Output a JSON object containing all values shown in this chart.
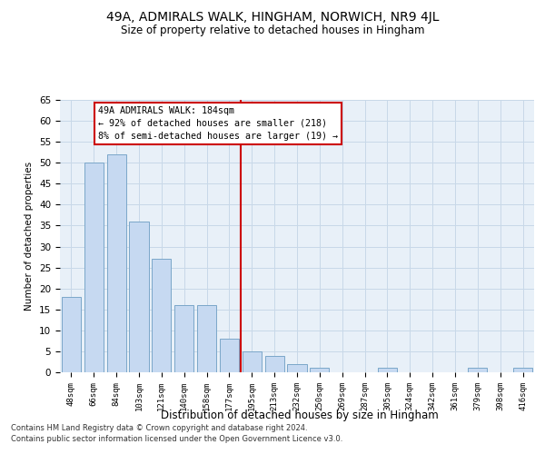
{
  "title": "49A, ADMIRALS WALK, HINGHAM, NORWICH, NR9 4JL",
  "subtitle": "Size of property relative to detached houses in Hingham",
  "xlabel": "Distribution of detached houses by size in Hingham",
  "ylabel": "Number of detached properties",
  "bar_labels": [
    "48sqm",
    "66sqm",
    "84sqm",
    "103sqm",
    "121sqm",
    "140sqm",
    "158sqm",
    "177sqm",
    "195sqm",
    "213sqm",
    "232sqm",
    "250sqm",
    "269sqm",
    "287sqm",
    "305sqm",
    "324sqm",
    "342sqm",
    "361sqm",
    "379sqm",
    "398sqm",
    "416sqm"
  ],
  "bar_values": [
    18,
    50,
    52,
    36,
    27,
    16,
    16,
    8,
    5,
    4,
    2,
    1,
    0,
    0,
    1,
    0,
    0,
    0,
    1,
    0,
    1
  ],
  "bar_color": "#c6d9f1",
  "bar_edge_color": "#7BA7C9",
  "property_line_x": 7.5,
  "annotation_text": "49A ADMIRALS WALK: 184sqm\n← 92% of detached houses are smaller (218)\n8% of semi-detached houses are larger (19) →",
  "annotation_box_color": "#ffffff",
  "annotation_box_edge_color": "#cc0000",
  "vline_color": "#cc0000",
  "ylim": [
    0,
    65
  ],
  "yticks": [
    0,
    5,
    10,
    15,
    20,
    25,
    30,
    35,
    40,
    45,
    50,
    55,
    60,
    65
  ],
  "grid_color": "#c8d8e8",
  "bg_color": "#e8f0f8",
  "footer_line1": "Contains HM Land Registry data © Crown copyright and database right 2024.",
  "footer_line2": "Contains public sector information licensed under the Open Government Licence v3.0."
}
